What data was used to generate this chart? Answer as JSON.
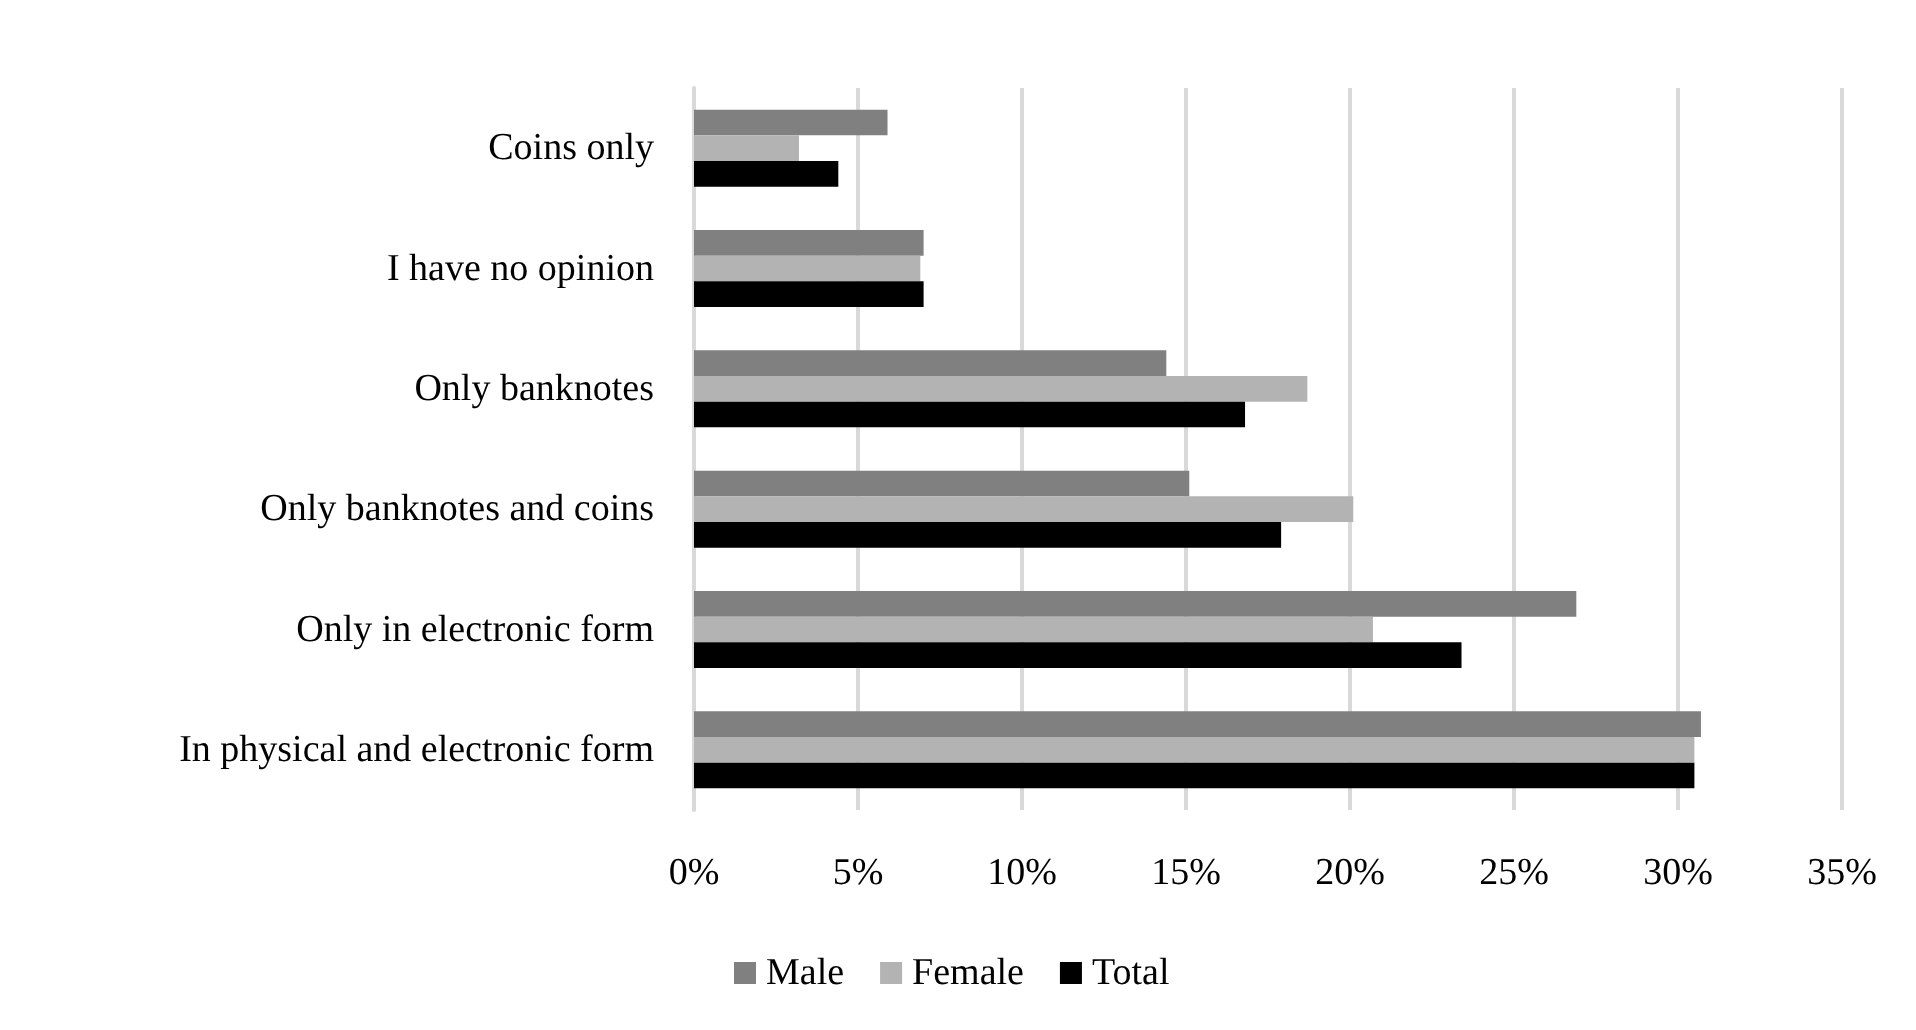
{
  "chart_data": {
    "type": "bar",
    "orientation": "horizontal",
    "categories": [
      "Coins only",
      "I have no opinion",
      "Only banknotes",
      "Only banknotes and coins",
      "Only in electronic form",
      "In physical and electronic form"
    ],
    "series": [
      {
        "name": "Male",
        "color": "#808080",
        "values": [
          5.9,
          7.0,
          14.4,
          15.1,
          26.9,
          30.7
        ]
      },
      {
        "name": "Female",
        "color": "#b3b3b3",
        "values": [
          3.2,
          6.9,
          18.7,
          20.1,
          20.7,
          30.5
        ]
      },
      {
        "name": "Total",
        "color": "#000000",
        "values": [
          4.4,
          7.0,
          16.8,
          17.9,
          23.4,
          30.5
        ]
      }
    ],
    "xlim": [
      0,
      35
    ],
    "xticks": [
      {
        "value": 0,
        "label": "0%"
      },
      {
        "value": 5,
        "label": "5%"
      },
      {
        "value": 10,
        "label": "10%"
      },
      {
        "value": 15,
        "label": "15%"
      },
      {
        "value": 20,
        "label": "20%"
      },
      {
        "value": 25,
        "label": "25%"
      },
      {
        "value": 30,
        "label": "30%"
      },
      {
        "value": 35,
        "label": "35%"
      }
    ],
    "grid": "x",
    "legend": "bottom"
  }
}
